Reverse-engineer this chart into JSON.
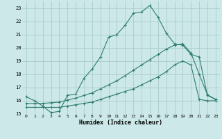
{
  "xlabel": "Humidex (Indice chaleur)",
  "background_color": "#cce8e8",
  "grid_color": "#aacccc",
  "line_color": "#2e7d6e",
  "xlim": [
    -0.5,
    23.5
  ],
  "ylim": [
    15,
    23.5
  ],
  "xticks": [
    0,
    1,
    2,
    3,
    4,
    5,
    6,
    7,
    8,
    9,
    10,
    11,
    12,
    13,
    14,
    15,
    16,
    17,
    18,
    19,
    20,
    21,
    22,
    23
  ],
  "yticks": [
    15,
    16,
    17,
    18,
    19,
    20,
    21,
    22,
    23
  ],
  "curve1_x": [
    0,
    1,
    2,
    3,
    4,
    5,
    6,
    7,
    8,
    9,
    10,
    11,
    12,
    13,
    14,
    15,
    16,
    17,
    18,
    19,
    20,
    21,
    22,
    23
  ],
  "curve1_y": [
    16.3,
    16.0,
    15.6,
    15.1,
    15.2,
    16.4,
    16.5,
    17.7,
    18.4,
    19.3,
    20.8,
    21.0,
    21.7,
    22.6,
    22.7,
    23.2,
    22.3,
    21.1,
    20.3,
    20.2,
    19.5,
    19.3,
    16.4,
    16.1
  ],
  "curve2_x": [
    0,
    1,
    2,
    3,
    4,
    5,
    6,
    7,
    8,
    9,
    10,
    11,
    12,
    13,
    14,
    15,
    16,
    17,
    18,
    19,
    20,
    21,
    22,
    23
  ],
  "curve2_y": [
    15.8,
    15.8,
    15.8,
    15.85,
    15.9,
    16.05,
    16.2,
    16.4,
    16.6,
    16.9,
    17.2,
    17.5,
    17.9,
    18.3,
    18.7,
    19.1,
    19.5,
    19.9,
    20.2,
    20.3,
    19.6,
    18.0,
    16.45,
    16.1
  ],
  "curve3_x": [
    0,
    1,
    2,
    3,
    4,
    5,
    6,
    7,
    8,
    9,
    10,
    11,
    12,
    13,
    14,
    15,
    16,
    17,
    18,
    19,
    20,
    21,
    22,
    23
  ],
  "curve3_y": [
    15.5,
    15.5,
    15.5,
    15.5,
    15.5,
    15.6,
    15.7,
    15.8,
    15.9,
    16.1,
    16.3,
    16.5,
    16.7,
    16.9,
    17.2,
    17.5,
    17.8,
    18.2,
    18.7,
    19.0,
    18.7,
    16.1,
    16.0,
    16.0
  ]
}
